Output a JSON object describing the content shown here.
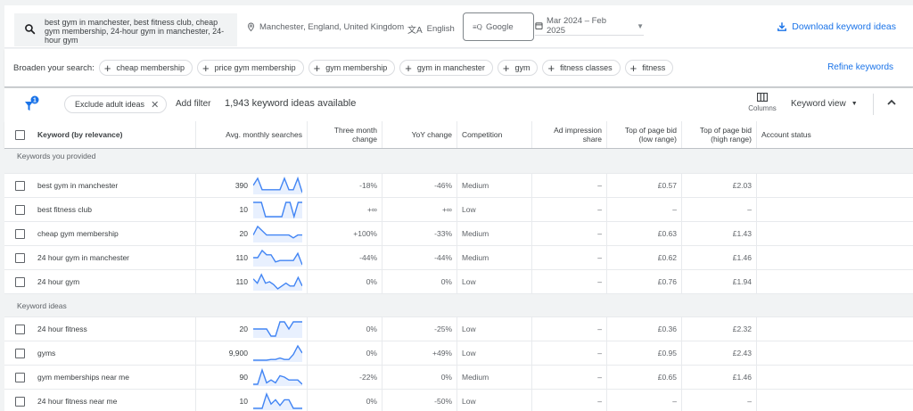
{
  "topbar": {
    "search_text": "best gym in manchester, best fitness club, cheap gym membership, 24-hour gym in manchester, 24-hour gym",
    "location": "Manchester, England, United Kingdom",
    "language": "English",
    "network": "Google",
    "date_range": "Mar 2024 – Feb 2025",
    "download_label": "Download keyword ideas",
    "accent_color": "#1a73e8"
  },
  "broaden": {
    "label": "Broaden your search:",
    "chips": [
      {
        "label": "cheap membership"
      },
      {
        "label": "price gym membership"
      },
      {
        "label": "gym membership"
      },
      {
        "label": "gym in manchester"
      },
      {
        "label": "gym"
      },
      {
        "label": "fitness classes"
      },
      {
        "label": "fitness"
      }
    ],
    "refine_label": "Refine keywords"
  },
  "filterbar": {
    "filter_badge_count": "1",
    "exclude_chip": "Exclude adult ideas",
    "add_filter": "Add filter",
    "ideas_count": "1,943 keyword ideas available",
    "columns_label": "Columns",
    "keyword_view": "Keyword view"
  },
  "table": {
    "headers": {
      "keyword": "Keyword (by relevance)",
      "avg": "Avg. monthly searches",
      "three_month": "Three month change",
      "yoy": "YoY change",
      "competition": "Competition",
      "ad_impression": "Ad impression share",
      "bid_low": "Top of page bid (low range)",
      "bid_high": "Top of page bid (high range)",
      "account_status": "Account status"
    },
    "sections": [
      {
        "title": "Keywords you provided",
        "rows": [
          {
            "keyword": "best gym in manchester",
            "avg": "390",
            "trend": [
              5,
              0,
              8,
              8,
              8,
              8,
              8,
              0,
              8,
              8,
              0,
              10
            ],
            "three_month": "-18%",
            "yoy": "-46%",
            "competition": "Medium",
            "ad_impression": "–",
            "bid_low": "£0.57",
            "bid_high": "£2.03",
            "account_status": ""
          },
          {
            "keyword": "best fitness club",
            "avg": "10",
            "trend": [
              0,
              0,
              0,
              10,
              10,
              10,
              10,
              10,
              0,
              0,
              10,
              0,
              0
            ],
            "three_month": "+∞",
            "yoy": "+∞",
            "competition": "Low",
            "ad_impression": "–",
            "bid_low": "–",
            "bid_high": "–",
            "account_status": ""
          },
          {
            "keyword": "cheap gym membership",
            "avg": "20",
            "trend": [
              6,
              0,
              3,
              6,
              6,
              6,
              6,
              6,
              6,
              8,
              6,
              6
            ],
            "three_month": "+100%",
            "yoy": "-33%",
            "competition": "Medium",
            "ad_impression": "–",
            "bid_low": "£0.63",
            "bid_high": "£1.43",
            "account_status": ""
          },
          {
            "keyword": "24 hour gym in manchester",
            "avg": "110",
            "trend": [
              5,
              5,
              0,
              3,
              3,
              8,
              7,
              7,
              7,
              7,
              2,
              10
            ],
            "three_month": "-44%",
            "yoy": "-44%",
            "competition": "Medium",
            "ad_impression": "–",
            "bid_low": "£0.62",
            "bid_high": "£1.46",
            "account_status": ""
          },
          {
            "keyword": "24 hour gym",
            "avg": "110",
            "trend": [
              3,
              6,
              0,
              6,
              5,
              7,
              10,
              8,
              6,
              8,
              8,
              2,
              8
            ],
            "three_month": "0%",
            "yoy": "0%",
            "competition": "Low",
            "ad_impression": "–",
            "bid_low": "£0.76",
            "bid_high": "£1.94",
            "account_status": ""
          }
        ]
      },
      {
        "title": "Keyword ideas",
        "rows": [
          {
            "keyword": "24 hour fitness",
            "avg": "20",
            "trend": [
              5,
              5,
              5,
              5,
              10,
              10,
              0,
              0,
              5,
              0,
              0,
              0
            ],
            "three_month": "0%",
            "yoy": "-25%",
            "competition": "Low",
            "ad_impression": "–",
            "bid_low": "£0.36",
            "bid_high": "£2.32",
            "account_status": ""
          },
          {
            "keyword": "gyms",
            "avg": "9,900",
            "trend": [
              10,
              10,
              10,
              10,
              9.5,
              9.5,
              8.5,
              9.5,
              9.5,
              6,
              0,
              5
            ],
            "three_month": "0%",
            "yoy": "+49%",
            "competition": "Low",
            "ad_impression": "–",
            "bid_low": "£0.95",
            "bid_high": "£2.43",
            "account_status": ""
          },
          {
            "keyword": "gym memberships near me",
            "avg": "90",
            "trend": [
              10,
              10,
              0,
              9,
              7,
              9,
              4,
              5,
              7,
              7,
              7,
              10
            ],
            "three_month": "-22%",
            "yoy": "0%",
            "competition": "Medium",
            "ad_impression": "–",
            "bid_low": "£0.65",
            "bid_high": "£1.46",
            "account_status": ""
          },
          {
            "keyword": "24 hour fitness near me",
            "avg": "10",
            "trend": [
              10,
              10,
              10,
              0,
              7,
              4,
              8,
              4,
              4,
              10,
              10,
              10
            ],
            "three_month": "0%",
            "yoy": "-50%",
            "competition": "Low",
            "ad_impression": "–",
            "bid_low": "–",
            "bid_high": "–",
            "account_status": ""
          }
        ]
      }
    ]
  }
}
